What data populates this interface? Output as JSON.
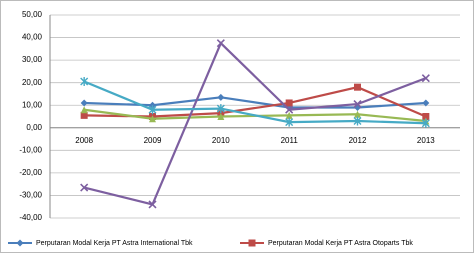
{
  "chart_data": {
    "type": "line",
    "categories": [
      "2008",
      "2009",
      "2010",
      "2011",
      "2012",
      "2013"
    ],
    "series": [
      {
        "name": "Perputaran Modal Kerja  PT Astra International Tbk",
        "color": "#4a7ebb",
        "marker": "diamond",
        "values": [
          11,
          10,
          13.5,
          9,
          9,
          11
        ]
      },
      {
        "name": "Perputaran Modal Kerja  PT Astra Otoparts Tbk",
        "color": "#be4b48",
        "marker": "square",
        "values": [
          5.5,
          5,
          6.5,
          11,
          18,
          5
        ]
      },
      {
        "color": "#98b954",
        "marker": "triangle",
        "values": [
          8,
          4,
          5,
          5.5,
          6,
          3
        ]
      },
      {
        "color": "#7d5fa0",
        "marker": "x",
        "values": [
          -26.5,
          -34,
          37.5,
          8,
          10.5,
          22
        ]
      },
      {
        "color": "#46aac5",
        "marker": "star",
        "values": [
          20.5,
          8,
          8.5,
          2.5,
          3,
          2
        ]
      }
    ],
    "ylim": [
      -40,
      50
    ],
    "yticks": [
      {
        "value": -40,
        "label": "-40,00"
      },
      {
        "value": -30,
        "label": "-30,00"
      },
      {
        "value": -20,
        "label": "-20,00"
      },
      {
        "value": -10,
        "label": "-10,00"
      },
      {
        "value": 0,
        "label": "0,00"
      },
      {
        "value": 10,
        "label": "10,00"
      },
      {
        "value": 20,
        "label": "20,00"
      },
      {
        "value": 30,
        "label": "30,00"
      },
      {
        "value": 40,
        "label": "40,00"
      },
      {
        "value": 50,
        "label": "50,00"
      }
    ],
    "grid": true
  }
}
